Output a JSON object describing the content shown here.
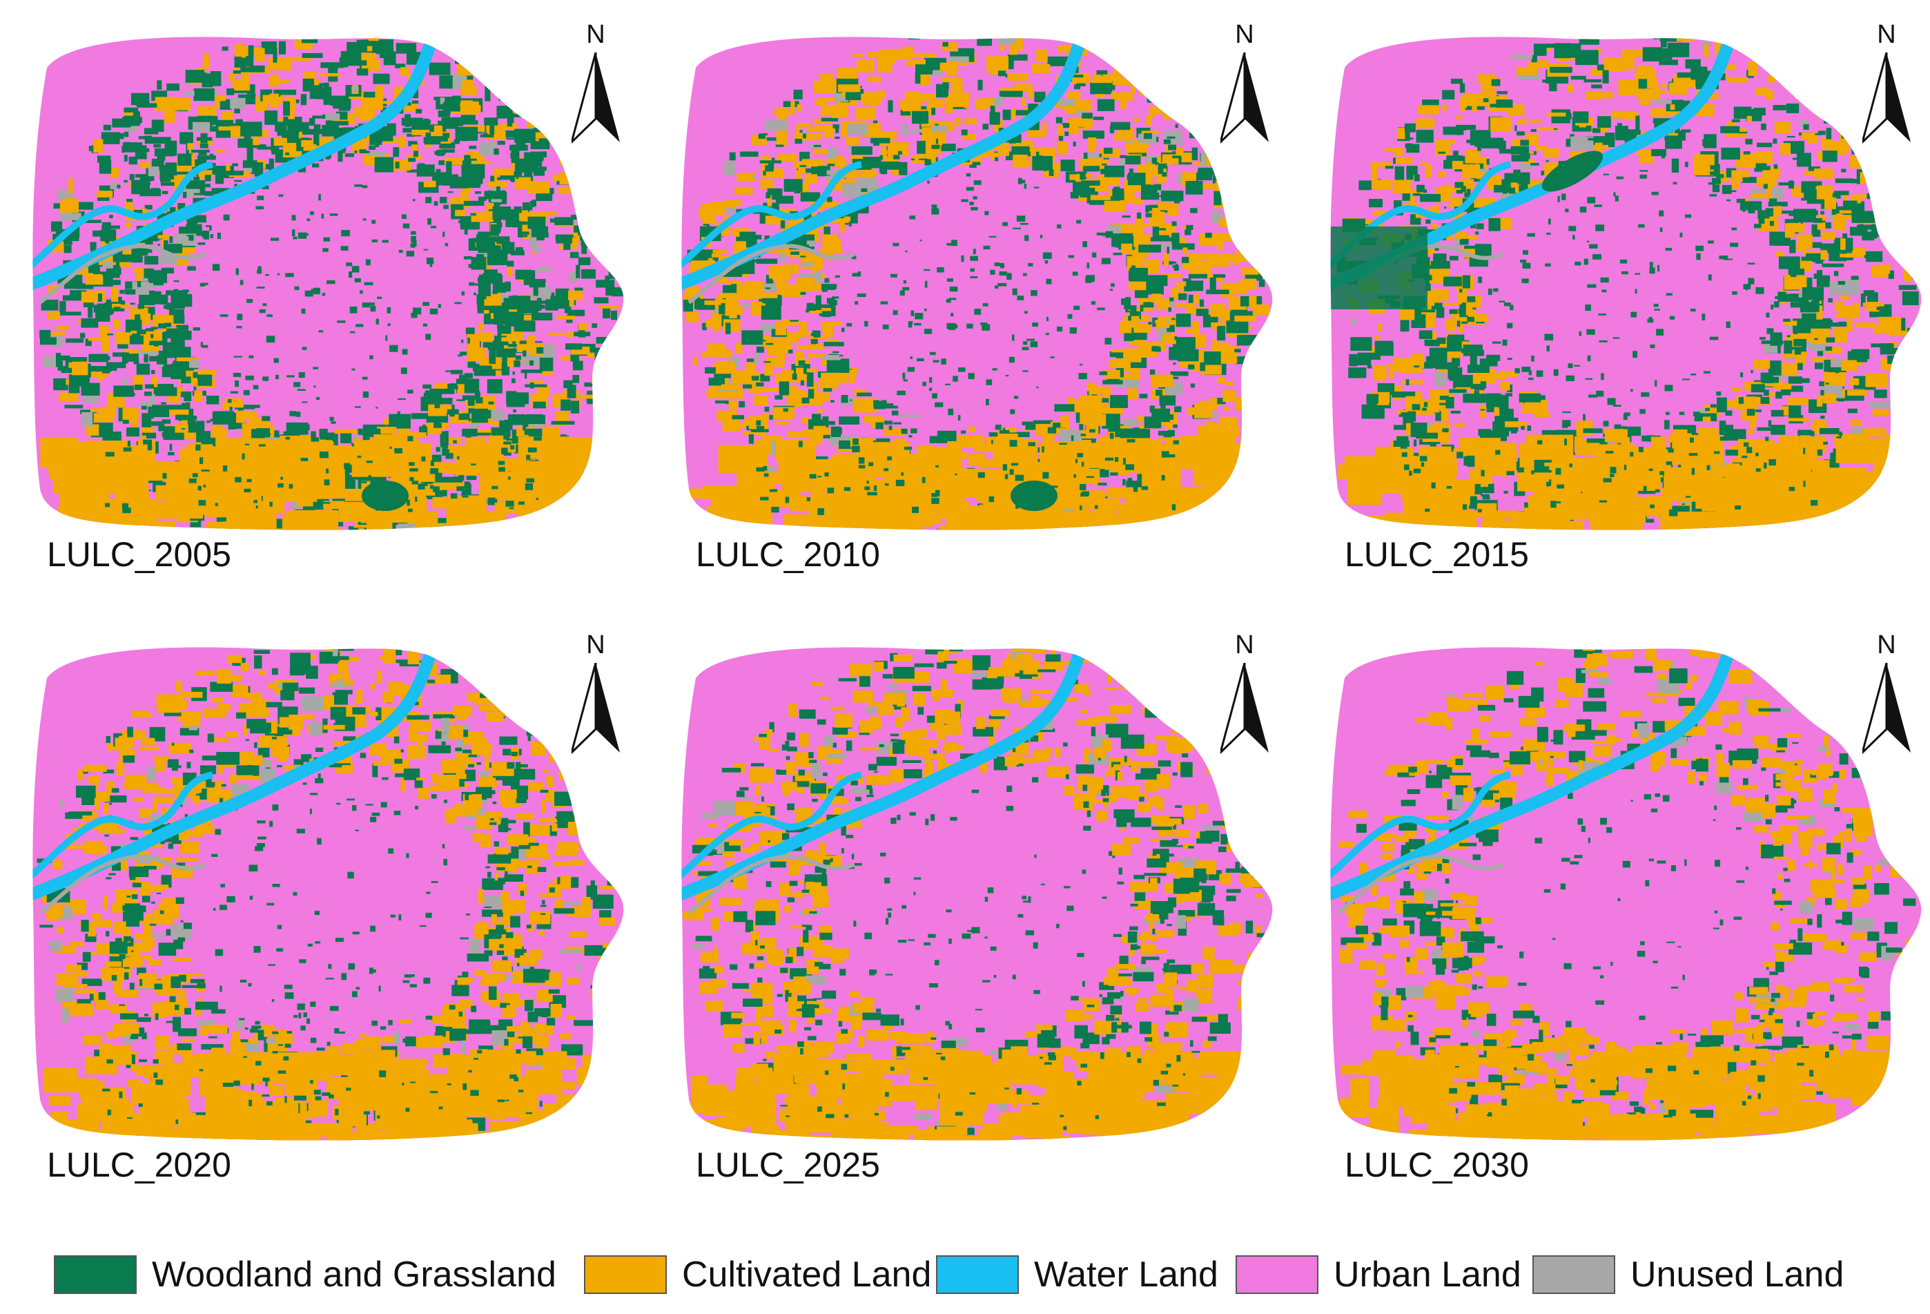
{
  "colors": {
    "woodland": "#0a7a4f",
    "cultivated": "#f2a900",
    "water": "#18bff0",
    "urban": "#f07ae0",
    "unused": "#a8a8a8"
  },
  "north_label": "N",
  "panels": [
    {
      "label": "LULC_2005",
      "north_icon": "north-arrow-icon"
    },
    {
      "label": "LULC_2010",
      "north_icon": "north-arrow-icon"
    },
    {
      "label": "LULC_2015",
      "north_icon": "north-arrow-icon"
    },
    {
      "label": "LULC_2020",
      "north_icon": "north-arrow-icon"
    },
    {
      "label": "LULC_2025",
      "north_icon": "north-arrow-icon"
    },
    {
      "label": "LULC_2030",
      "north_icon": "north-arrow-icon"
    }
  ],
  "legend": [
    {
      "label": "Woodland and Grassland",
      "color": "#0a7a4f"
    },
    {
      "label": "Cultivated Land",
      "color": "#f2a900"
    },
    {
      "label": "Water Land",
      "color": "#18bff0"
    },
    {
      "label": "Urban Land",
      "color": "#f07ae0"
    },
    {
      "label": "Unused Land",
      "color": "#a8a8a8"
    }
  ]
}
